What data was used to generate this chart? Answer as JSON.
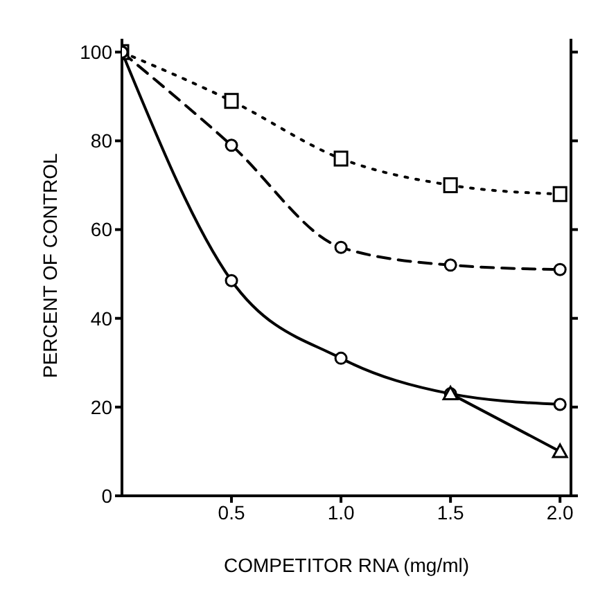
{
  "chart_data": {
    "type": "line",
    "xlabel": "COMPETITOR RNA (mg/ml)",
    "ylabel": "PERCENT OF CONTROL",
    "xlim": [
      0,
      2.05
    ],
    "xticks": [
      {
        "value": 0.5,
        "label": "0.5"
      },
      {
        "value": 1,
        "label": "1.0"
      },
      {
        "value": 1.5,
        "label": "1.5"
      },
      {
        "value": 2,
        "label": "2.0"
      }
    ],
    "ylim": [
      0,
      103
    ],
    "yticks": [
      0,
      20,
      40,
      60,
      80,
      100
    ],
    "series": [
      {
        "color": "#000000",
        "x": [
          0,
          0.5,
          1,
          1.5,
          2
        ],
        "values": [
          100,
          89,
          76,
          70,
          68
        ],
        "marker": "square",
        "line_style": "dotted"
      },
      {
        "color": "#000000",
        "x": [
          0,
          0.5,
          1,
          1.5,
          2
        ],
        "values": [
          100,
          79,
          56,
          52,
          51
        ],
        "marker": "circle",
        "line_style": "dashed"
      },
      {
        "color": "#000000",
        "x": [
          0,
          0.5,
          1,
          1.5,
          2
        ],
        "values": [
          100,
          48.5,
          31,
          23,
          20.6
        ],
        "marker": "circle",
        "line_style": "solid"
      },
      {
        "color": "#000000",
        "x": [
          1.5,
          2
        ],
        "values": [
          23,
          10
        ],
        "marker": "triangle",
        "line_style": "solid"
      }
    ]
  }
}
